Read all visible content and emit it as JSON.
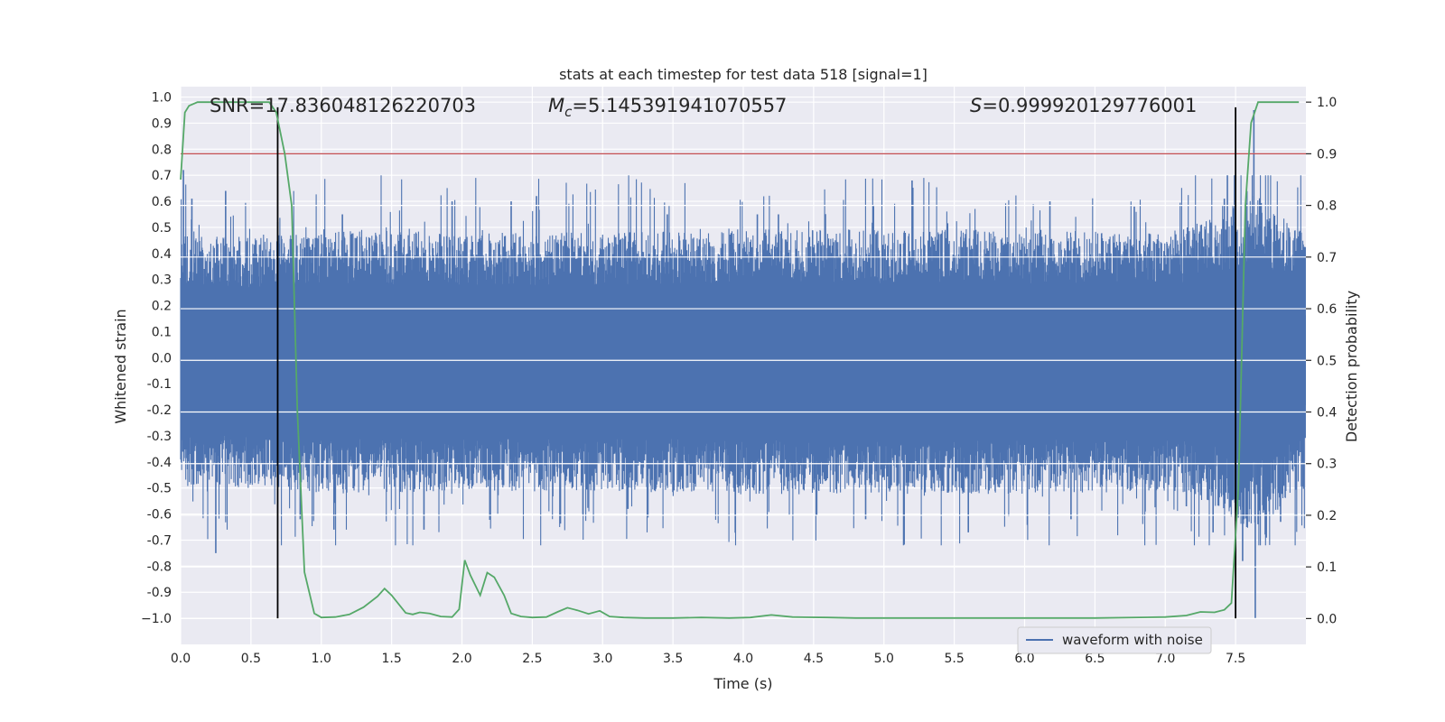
{
  "chart_data": {
    "type": "line",
    "title": "stats at each timestep for test data 518 [signal=1]",
    "xlabel": "Time (s)",
    "ylabel": "Whitened strain",
    "y2label": "Detection probability",
    "xlim": [
      0.0,
      8.0
    ],
    "ylim": [
      -1.1,
      1.04
    ],
    "y2lim": [
      -0.05,
      1.03
    ],
    "xticks": [
      0.0,
      0.5,
      1.0,
      1.5,
      2.0,
      2.5,
      3.0,
      3.5,
      4.0,
      4.5,
      5.0,
      5.5,
      6.0,
      6.5,
      7.0,
      7.5
    ],
    "xtick_labels": [
      "0.0",
      "0.5",
      "1.0",
      "1.5",
      "2.0",
      "2.5",
      "3.0",
      "3.5",
      "4.0",
      "4.5",
      "5.0",
      "5.5",
      "6.0",
      "6.5",
      "7.0",
      "7.5"
    ],
    "yticks": [
      1.0,
      0.9,
      0.8,
      0.7,
      0.6,
      0.5,
      0.4,
      0.3,
      0.2,
      0.1,
      0.0,
      -0.1,
      -0.2,
      -0.3,
      -0.4,
      -0.5,
      -0.6,
      -0.7,
      -0.8,
      -0.9,
      -1.0
    ],
    "ytick_labels": [
      "1.0",
      "0.9",
      "0.8",
      "0.7",
      "0.6",
      "0.5",
      "0.4",
      "0.3",
      "0.2",
      "0.1",
      "0.0",
      "-0.1",
      "-0.2",
      "-0.3",
      "-0.4",
      "-0.5",
      "-0.6",
      "-0.7",
      "-0.8",
      "-0.9",
      "−1.0"
    ],
    "y2ticks": [
      1.0,
      0.9,
      0.8,
      0.7,
      0.6,
      0.5,
      0.4,
      0.3,
      0.2,
      0.1,
      0.0
    ],
    "y2tick_labels": [
      "1.0",
      "0.9",
      "0.8",
      "0.7",
      "0.6",
      "0.5",
      "0.4",
      "0.3",
      "0.2",
      "0.1",
      "0.0"
    ],
    "grid": true,
    "legend": {
      "position": "lower-right",
      "entries": [
        "waveform with noise"
      ]
    },
    "annotations": {
      "snr": "SNR=17.836048126220703",
      "mc_symbol": "M",
      "mc_sub": "c",
      "mc_value": "=5.145391941070557",
      "s_symbol": "S",
      "s_value": "=0.999920129776001"
    },
    "threshold": {
      "y2": 0.9,
      "color": "#c44e52"
    },
    "vertical_lines": [
      0.69,
      7.5
    ],
    "vertical_line_range": [
      -1.0,
      0.99
    ],
    "waveform": {
      "name": "waveform with noise",
      "color": "#4c72b0",
      "envelope": [
        {
          "x": 0.0,
          "y": 0.36
        },
        {
          "x": 0.5,
          "y": 0.36
        },
        {
          "x": 1.0,
          "y": 0.38
        },
        {
          "x": 2.0,
          "y": 0.37
        },
        {
          "x": 3.0,
          "y": 0.37
        },
        {
          "x": 4.0,
          "y": 0.38
        },
        {
          "x": 5.0,
          "y": 0.38
        },
        {
          "x": 6.0,
          "y": 0.38
        },
        {
          "x": 7.0,
          "y": 0.37
        },
        {
          "x": 7.4,
          "y": 0.42
        },
        {
          "x": 7.6,
          "y": 0.5
        },
        {
          "x": 8.0,
          "y": 0.36
        }
      ],
      "peaks": [
        {
          "x": 0.02,
          "y": 0.72
        },
        {
          "x": 0.08,
          "y": 0.61
        },
        {
          "x": 0.32,
          "y": 0.64
        },
        {
          "x": 0.69,
          "y": 0.52
        },
        {
          "x": 1.15,
          "y": 0.55
        },
        {
          "x": 1.93,
          "y": 0.6
        },
        {
          "x": 2.35,
          "y": 0.6
        },
        {
          "x": 2.53,
          "y": 0.62
        },
        {
          "x": 3.46,
          "y": 0.55
        },
        {
          "x": 4.1,
          "y": 0.55
        },
        {
          "x": 4.25,
          "y": 0.55
        },
        {
          "x": 5.2,
          "y": 0.68
        },
        {
          "x": 6.18,
          "y": 0.6
        },
        {
          "x": 6.78,
          "y": 0.58
        },
        {
          "x": 7.42,
          "y": 0.61
        },
        {
          "x": 7.63,
          "y": 0.95
        }
      ],
      "troughs": [
        {
          "x": 0.25,
          "y": -0.75
        },
        {
          "x": 0.85,
          "y": -0.62
        },
        {
          "x": 1.09,
          "y": -0.66
        },
        {
          "x": 1.73,
          "y": -0.66
        },
        {
          "x": 2.86,
          "y": -0.6
        },
        {
          "x": 3.18,
          "y": -0.58
        },
        {
          "x": 4.87,
          "y": -0.62
        },
        {
          "x": 5.6,
          "y": -0.67
        },
        {
          "x": 6.33,
          "y": -0.62
        },
        {
          "x": 7.15,
          "y": -0.57
        },
        {
          "x": 7.34,
          "y": -0.67
        },
        {
          "x": 7.55,
          "y": -0.78
        },
        {
          "x": 7.64,
          "y": -1.0
        },
        {
          "x": 7.82,
          "y": -0.63
        }
      ]
    },
    "probability": {
      "color": "#55a868",
      "x": [
        0.0,
        0.03,
        0.06,
        0.12,
        0.2,
        0.3,
        0.4,
        0.5,
        0.58,
        0.63,
        0.68,
        0.74,
        0.79,
        0.83,
        0.88,
        0.95,
        1.0,
        1.1,
        1.2,
        1.3,
        1.4,
        1.45,
        1.5,
        1.6,
        1.65,
        1.7,
        1.77,
        1.85,
        1.93,
        1.98,
        2.02,
        2.06,
        2.13,
        2.18,
        2.23,
        2.3,
        2.35,
        2.42,
        2.5,
        2.6,
        2.68,
        2.75,
        2.82,
        2.9,
        2.98,
        3.05,
        3.15,
        3.3,
        3.5,
        3.7,
        3.9,
        4.05,
        4.2,
        4.35,
        4.6,
        4.8,
        5.0,
        5.5,
        6.0,
        6.5,
        7.0,
        7.15,
        7.25,
        7.35,
        7.42,
        7.47,
        7.52,
        7.57,
        7.61,
        7.66,
        7.75,
        7.95
      ],
      "y": [
        0.85,
        0.98,
        0.993,
        1.0,
        1.0,
        1.0,
        1.0,
        1.0,
        1.0,
        1.0,
        0.98,
        0.9,
        0.8,
        0.4,
        0.09,
        0.01,
        0.002,
        0.003,
        0.008,
        0.022,
        0.043,
        0.058,
        0.045,
        0.011,
        0.008,
        0.012,
        0.01,
        0.004,
        0.003,
        0.018,
        0.113,
        0.084,
        0.045,
        0.089,
        0.08,
        0.045,
        0.01,
        0.004,
        0.002,
        0.003,
        0.013,
        0.021,
        0.016,
        0.009,
        0.015,
        0.004,
        0.002,
        0.001,
        0.001,
        0.002,
        0.001,
        0.002,
        0.007,
        0.003,
        0.002,
        0.001,
        0.001,
        0.001,
        0.001,
        0.001,
        0.003,
        0.006,
        0.013,
        0.012,
        0.017,
        0.03,
        0.25,
        0.8,
        0.96,
        1.0,
        1.0,
        1.0
      ]
    }
  }
}
